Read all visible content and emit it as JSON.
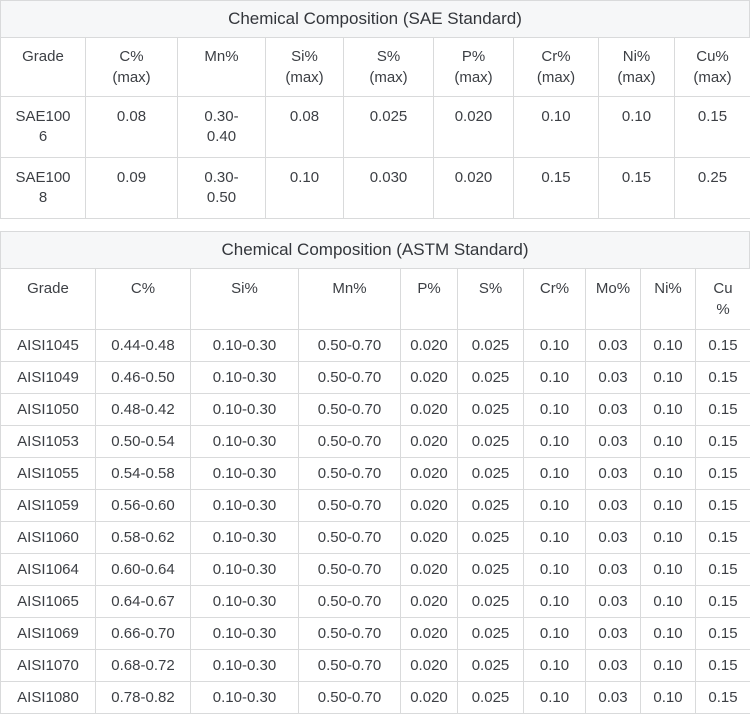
{
  "colors": {
    "border": "#d9dadb",
    "title_bar_background": "#f6f7f8",
    "body_text": "#3c3f44",
    "title_text": "#33363b"
  },
  "tables": [
    {
      "title": "Chemical Composition (SAE Standard)",
      "columns": [
        {
          "label": "Grade",
          "sub": ""
        },
        {
          "label": "C%",
          "sub": "(max)"
        },
        {
          "label": "Mn%",
          "sub": ""
        },
        {
          "label": "Si%",
          "sub": "(max)"
        },
        {
          "label": "S%",
          "sub": "(max)"
        },
        {
          "label": "P%",
          "sub": "(max)"
        },
        {
          "label": "Cr%",
          "sub": "(max)"
        },
        {
          "label": "Ni%",
          "sub": "(max)"
        },
        {
          "label": "Cu%",
          "sub": "(max)"
        }
      ],
      "rows": [
        [
          "SAE1006",
          "0.08",
          "0.30-0.40",
          "0.08",
          "0.025",
          "0.020",
          "0.10",
          "0.10",
          "0.15"
        ],
        [
          "SAE1008",
          "0.09",
          "0.30-0.50",
          "0.10",
          "0.030",
          "0.020",
          "0.15",
          "0.15",
          "0.25"
        ]
      ]
    },
    {
      "title": "Chemical Composition (ASTM Standard)",
      "columns": [
        {
          "label": "Grade",
          "sub": ""
        },
        {
          "label": "C%",
          "sub": ""
        },
        {
          "label": "Si%",
          "sub": ""
        },
        {
          "label": "Mn%",
          "sub": ""
        },
        {
          "label": "P%",
          "sub": ""
        },
        {
          "label": "S%",
          "sub": ""
        },
        {
          "label": "Cr%",
          "sub": ""
        },
        {
          "label": "Mo%",
          "sub": ""
        },
        {
          "label": "Ni%",
          "sub": ""
        },
        {
          "label": "Cu%",
          "sub": ""
        }
      ],
      "rows": [
        [
          "AISI1045",
          "0.44-0.48",
          "0.10-0.30",
          "0.50-0.70",
          "0.020",
          "0.025",
          "0.10",
          "0.03",
          "0.10",
          "0.15"
        ],
        [
          "AISI1049",
          "0.46-0.50",
          "0.10-0.30",
          "0.50-0.70",
          "0.020",
          "0.025",
          "0.10",
          "0.03",
          "0.10",
          "0.15"
        ],
        [
          "AISI1050",
          "0.48-0.42",
          "0.10-0.30",
          "0.50-0.70",
          "0.020",
          "0.025",
          "0.10",
          "0.03",
          "0.10",
          "0.15"
        ],
        [
          "AISI1053",
          "0.50-0.54",
          "0.10-0.30",
          "0.50-0.70",
          "0.020",
          "0.025",
          "0.10",
          "0.03",
          "0.10",
          "0.15"
        ],
        [
          "AISI1055",
          "0.54-0.58",
          "0.10-0.30",
          "0.50-0.70",
          "0.020",
          "0.025",
          "0.10",
          "0.03",
          "0.10",
          "0.15"
        ],
        [
          "AISI1059",
          "0.56-0.60",
          "0.10-0.30",
          "0.50-0.70",
          "0.020",
          "0.025",
          "0.10",
          "0.03",
          "0.10",
          "0.15"
        ],
        [
          "AISI1060",
          "0.58-0.62",
          "0.10-0.30",
          "0.50-0.70",
          "0.020",
          "0.025",
          "0.10",
          "0.03",
          "0.10",
          "0.15"
        ],
        [
          "AISI1064",
          "0.60-0.64",
          "0.10-0.30",
          "0.50-0.70",
          "0.020",
          "0.025",
          "0.10",
          "0.03",
          "0.10",
          "0.15"
        ],
        [
          "AISI1065",
          "0.64-0.67",
          "0.10-0.30",
          "0.50-0.70",
          "0.020",
          "0.025",
          "0.10",
          "0.03",
          "0.10",
          "0.15"
        ],
        [
          "AISI1069",
          "0.66-0.70",
          "0.10-0.30",
          "0.50-0.70",
          "0.020",
          "0.025",
          "0.10",
          "0.03",
          "0.10",
          "0.15"
        ],
        [
          "AISI1070",
          "0.68-0.72",
          "0.10-0.30",
          "0.50-0.70",
          "0.020",
          "0.025",
          "0.10",
          "0.03",
          "0.10",
          "0.15"
        ],
        [
          "AISI1080",
          "0.78-0.82",
          "0.10-0.30",
          "0.50-0.70",
          "0.020",
          "0.025",
          "0.10",
          "0.03",
          "0.10",
          "0.15"
        ]
      ]
    }
  ]
}
